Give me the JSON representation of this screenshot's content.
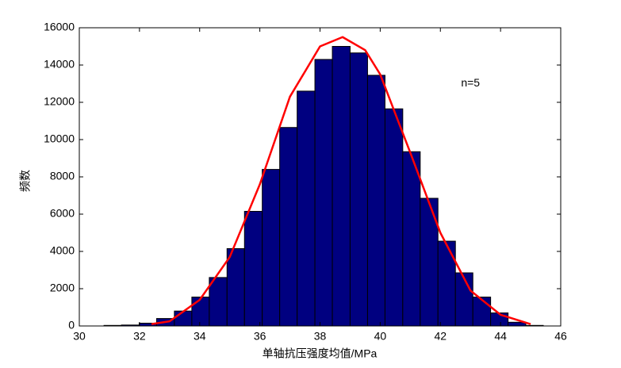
{
  "chart_data": {
    "type": "histogram",
    "xlabel": "单轴抗压强度均值/MPa",
    "ylabel": "频数",
    "annotation": {
      "text": "n=5",
      "x": 43,
      "y": 13000
    },
    "bins": [
      30.82,
      31.4,
      31.99,
      32.57,
      33.16,
      33.74,
      34.32,
      34.91,
      35.49,
      36.08,
      36.66,
      37.24,
      37.83,
      38.41,
      39.0,
      39.58,
      40.16,
      40.75,
      41.33,
      41.92,
      42.5,
      43.08,
      43.67,
      44.25,
      44.84,
      45.42
    ],
    "counts": [
      30,
      50,
      150,
      400,
      800,
      1550,
      2600,
      4150,
      6150,
      8400,
      10650,
      12600,
      14300,
      15000,
      14650,
      13450,
      11650,
      9350,
      6850,
      4550,
      2850,
      1550,
      700,
      200,
      30
    ],
    "color": "#000080",
    "curve": {
      "color": "#ff0000",
      "x": [
        32.4,
        33,
        34,
        35,
        36,
        37,
        38,
        38.75,
        39.5,
        40,
        41,
        42,
        43,
        44,
        45
      ],
      "values": [
        100,
        250,
        1400,
        3700,
        7600,
        12300,
        15000,
        15500,
        14800,
        13500,
        9300,
        5000,
        1900,
        600,
        100
      ]
    },
    "xlim": [
      30,
      46
    ],
    "ylim": [
      0,
      16000
    ],
    "xticks": [
      30,
      32,
      34,
      36,
      38,
      40,
      42,
      44,
      46
    ],
    "yticks": [
      0,
      2000,
      4000,
      6000,
      8000,
      10000,
      12000,
      14000,
      16000
    ]
  }
}
